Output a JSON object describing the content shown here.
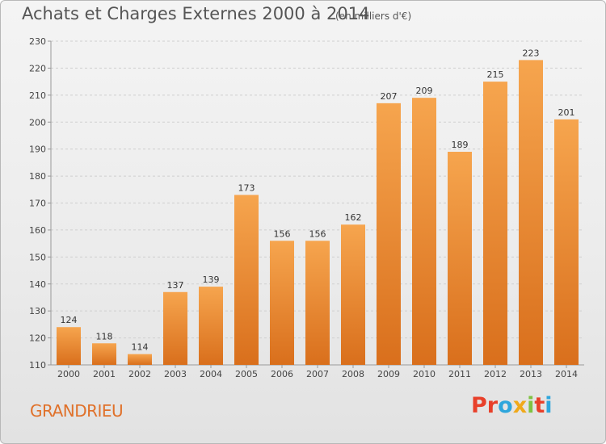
{
  "header": {
    "title": "Achats et Charges Externes 2000 à 2014",
    "subtitle": "(en milliers d'€)"
  },
  "footer": {
    "commune": "GRANDRIEU",
    "logo_text": "Proxiti"
  },
  "colors": {
    "bar_top": "#f6a54e",
    "bar_bottom": "#d96f1c",
    "commune": "#e0712a",
    "logo": [
      "#e8402a",
      "#e8402a",
      "#2ea6dc",
      "#f0a91a",
      "#7fc242",
      "#e8402a",
      "#2ea6dc"
    ]
  },
  "chart_data": {
    "type": "bar",
    "categories": [
      "2000",
      "2001",
      "2002",
      "2003",
      "2004",
      "2005",
      "2006",
      "2007",
      "2008",
      "2009",
      "2010",
      "2011",
      "2012",
      "2013",
      "2014"
    ],
    "values": [
      124,
      118,
      114,
      137,
      139,
      173,
      156,
      156,
      162,
      207,
      209,
      189,
      215,
      223,
      201
    ],
    "title": "Achats et Charges Externes 2000 à 2014",
    "subtitle": "(en milliers d'€)",
    "ylim": [
      110,
      230
    ],
    "yticks": [
      110,
      120,
      130,
      140,
      150,
      160,
      170,
      180,
      190,
      200,
      210,
      220,
      230
    ],
    "grid": true,
    "data_labels": true
  }
}
